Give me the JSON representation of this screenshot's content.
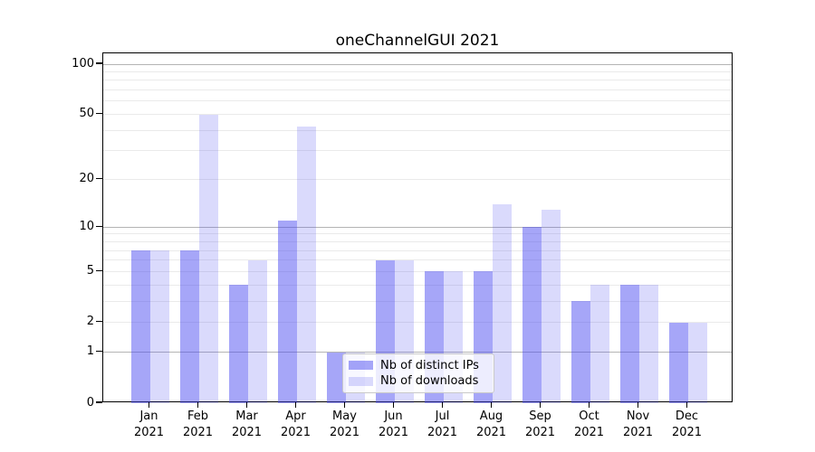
{
  "title": "oneChannelGUI 2021",
  "chart_data": {
    "type": "bar",
    "title": "oneChannelGUI 2021",
    "categories": [
      "Jan 2021",
      "Feb 2021",
      "Mar 2021",
      "Apr 2021",
      "May 2021",
      "Jun 2021",
      "Jul 2021",
      "Aug 2021",
      "Sep 2021",
      "Oct 2021",
      "Nov 2021",
      "Dec 2021"
    ],
    "x_tick_months": [
      "Jan",
      "Feb",
      "Mar",
      "Apr",
      "May",
      "Jun",
      "Jul",
      "Aug",
      "Sep",
      "Oct",
      "Nov",
      "Dec"
    ],
    "x_tick_year": "2021",
    "series": [
      {
        "name": "Nb of distinct IPs",
        "color": "rgba(70,70,240,0.48)",
        "values": [
          7,
          7,
          4,
          11,
          1,
          6,
          5,
          5,
          10,
          3,
          4,
          2
        ]
      },
      {
        "name": "Nb of downloads",
        "color": "rgba(70,70,240,0.20)",
        "values": [
          7,
          50,
          6,
          42,
          1,
          6,
          5,
          14,
          13,
          4,
          4,
          2
        ]
      }
    ],
    "y_scale": "log1p",
    "ylim": [
      0,
      118
    ],
    "y_ticks": [
      0,
      1,
      2,
      5,
      10,
      20,
      50,
      100
    ],
    "y_gridlines_major": [
      1,
      10,
      100
    ],
    "y_gridlines_minor": [
      2,
      3,
      4,
      5,
      6,
      7,
      8,
      9,
      20,
      30,
      40,
      50,
      60,
      70,
      80,
      90
    ],
    "grid": true,
    "legend_position": "lower center"
  },
  "colors": {
    "background": "#ffffff",
    "bar_distinct_ips": "rgba(70,70,240,0.48)",
    "bar_downloads": "rgba(70,70,240,0.20)",
    "grid_major": "#b4b4b4",
    "grid_minor": "#eaeaea",
    "axis": "#000000",
    "legend_border": "#c9c9c9"
  }
}
